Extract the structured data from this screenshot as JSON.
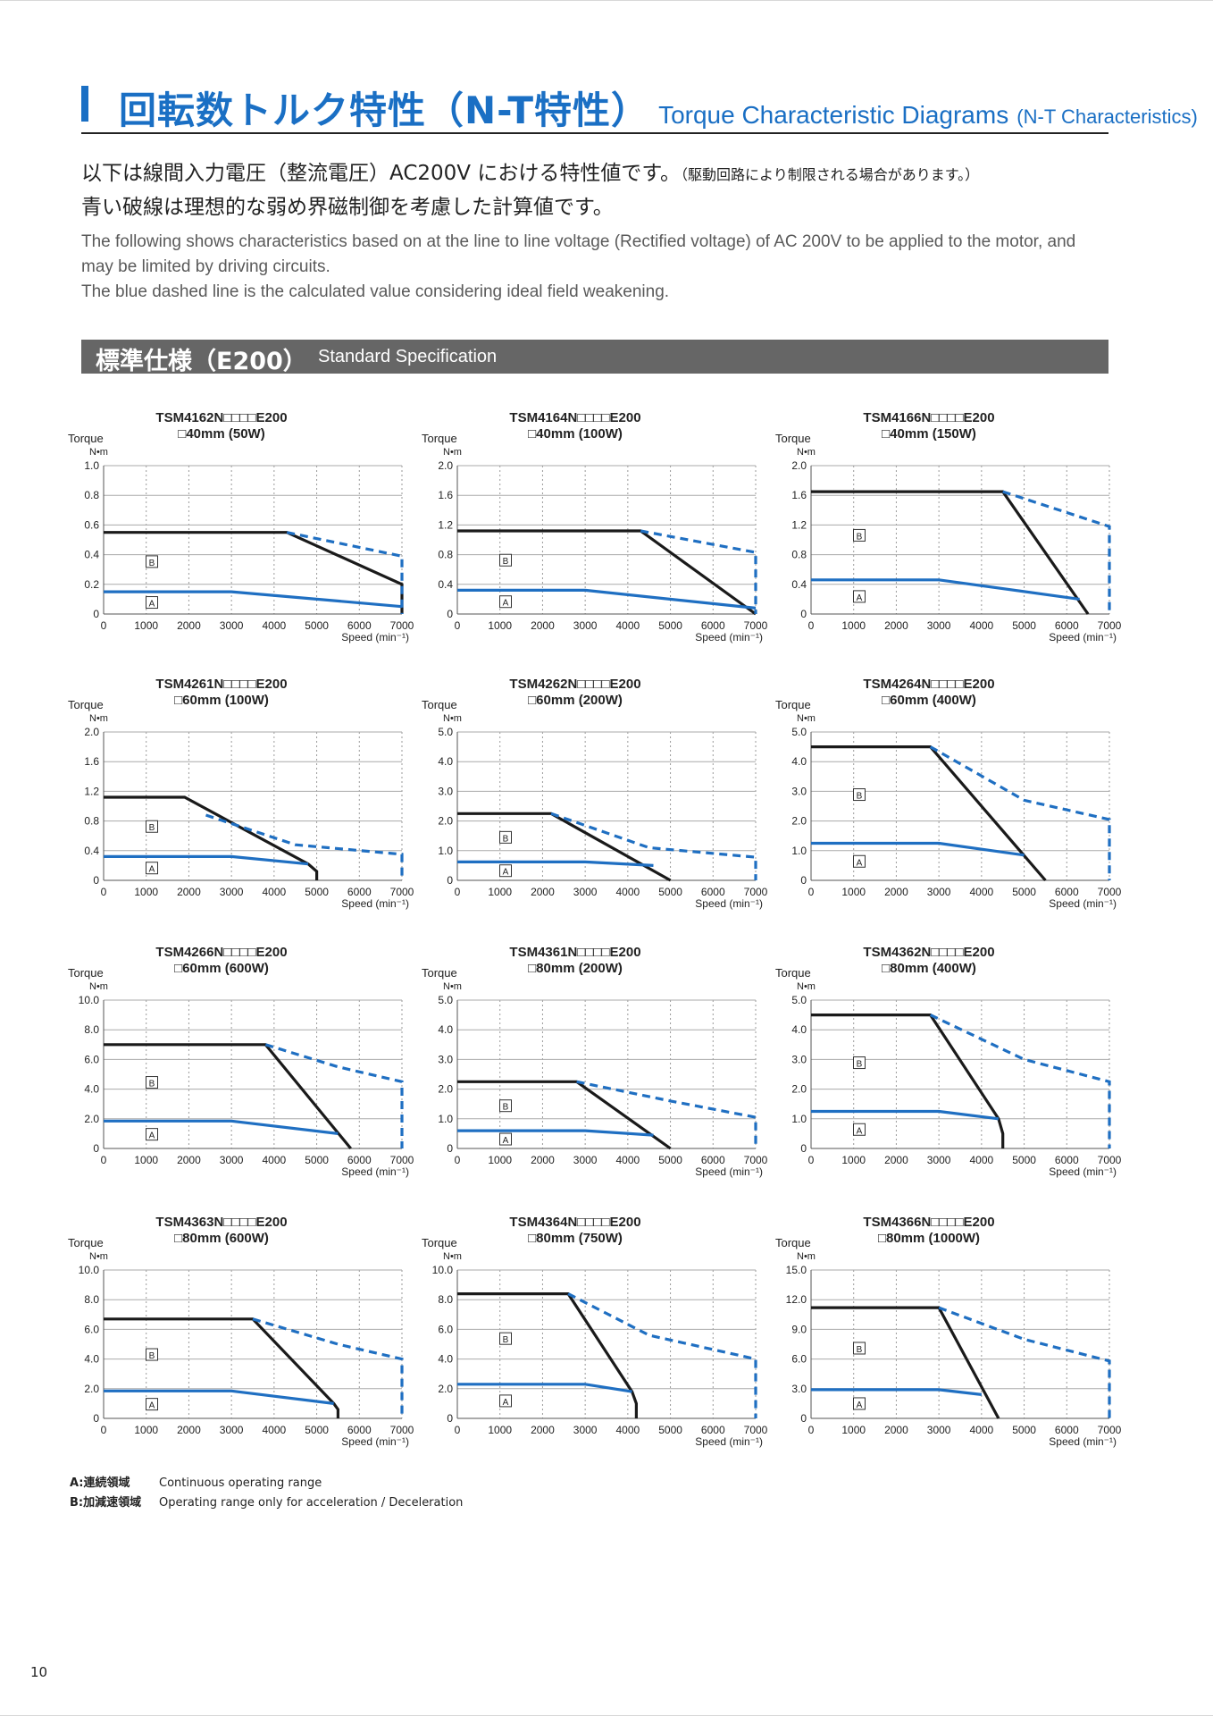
{
  "header": {
    "title_jp": "回転数トルク特性（N-T特性）",
    "title_en": "Torque Characteristic Diagrams",
    "title_en_suffix": "(N-T Characteristics)"
  },
  "intro": {
    "jp_line1": "以下は線間入力電圧（整流電圧）AC200V における特性値です。",
    "jp_line1_note": "（駆動回路により制限される場合があります。）",
    "jp_line2": "青い破線は理想的な弱め界磁制御を考慮した計算値です。",
    "en_line1": "The following shows characteristics based on at the line to line voltage (Rectified voltage) of AC 200V to be applied to the motor, and",
    "en_line2": "may be limited by driving circuits.",
    "en_line3": "The blue dashed line is the calculated value considering ideal field weakening."
  },
  "section": {
    "title_jp": "標準仕様（E200）",
    "title_en": "Standard Specification"
  },
  "axis_common": {
    "ylabel": "Torque",
    "yunit": "N•m",
    "xlabel": "Speed (min⁻¹)",
    "xticks": [
      "0",
      "1000",
      "2000",
      "3000",
      "4000",
      "5000",
      "6000",
      "7000"
    ],
    "region_a": "A",
    "region_b": "B"
  },
  "colors": {
    "accent": "#1a6fc4",
    "intermittent": "#1a1a1a",
    "continuous": "#1f6fc2",
    "section_bg": "#666666"
  },
  "chart_data": [
    {
      "type": "line",
      "title": "TSM4162N□□□□E200",
      "subtitle": "□40mm (50W)",
      "ylim": [
        0,
        1.0
      ],
      "yticks": [
        "1.0",
        "0.8",
        "0.6",
        "0.4",
        "0.2",
        "0"
      ],
      "xlim": [
        0,
        7000
      ],
      "series": [
        {
          "x": [
            0,
            4300,
            7000,
            7000
          ],
          "y": [
            0.55,
            0.55,
            0.2,
            0
          ]
        },
        {
          "x": [
            4300,
            7000,
            7000
          ],
          "y": [
            0.55,
            0.39,
            0
          ]
        },
        {
          "x": [
            0,
            3000,
            7000
          ],
          "y": [
            0.15,
            0.15,
            0.05
          ]
        }
      ]
    },
    {
      "type": "line",
      "title": "TSM4164N□□□□E200",
      "subtitle": "□40mm (100W)",
      "ylim": [
        0,
        2.0
      ],
      "yticks": [
        "2.0",
        "1.6",
        "1.2",
        "0.8",
        "0.4",
        "0"
      ],
      "xlim": [
        0,
        7000
      ],
      "series": [
        {
          "x": [
            0,
            4300,
            7000
          ],
          "y": [
            1.12,
            1.12,
            0
          ]
        },
        {
          "x": [
            4300,
            7000,
            7000
          ],
          "y": [
            1.12,
            0.83,
            0
          ]
        },
        {
          "x": [
            0,
            3000,
            7000
          ],
          "y": [
            0.32,
            0.32,
            0.08
          ]
        }
      ]
    },
    {
      "type": "line",
      "title": "TSM4166N□□□□E200",
      "subtitle": "□40mm (150W)",
      "ylim": [
        0,
        2.0
      ],
      "yticks": [
        "2.0",
        "1.6",
        "1.2",
        "0.8",
        "0.4",
        "0"
      ],
      "xlim": [
        0,
        7000
      ],
      "series": [
        {
          "x": [
            0,
            4500,
            6500
          ],
          "y": [
            1.65,
            1.65,
            0
          ]
        },
        {
          "x": [
            4500,
            7000,
            7000
          ],
          "y": [
            1.65,
            1.18,
            0
          ]
        },
        {
          "x": [
            0,
            3000,
            6300
          ],
          "y": [
            0.46,
            0.46,
            0.2
          ]
        }
      ]
    },
    {
      "type": "line",
      "title": "TSM4261N□□□□E200",
      "subtitle": "□60mm (100W)",
      "ylim": [
        0,
        2.0
      ],
      "yticks": [
        "2.0",
        "1.6",
        "1.2",
        "0.8",
        "0.4",
        "0"
      ],
      "xlim": [
        0,
        7000
      ],
      "series": [
        {
          "x": [
            0,
            1900,
            4800,
            5000,
            5000
          ],
          "y": [
            1.12,
            1.12,
            0.22,
            0.12,
            0
          ]
        },
        {
          "x": [
            2400,
            4500,
            7000,
            7000
          ],
          "y": [
            0.88,
            0.48,
            0.35,
            0
          ]
        },
        {
          "x": [
            0,
            3000,
            4800
          ],
          "y": [
            0.32,
            0.32,
            0.22
          ]
        }
      ]
    },
    {
      "type": "line",
      "title": "TSM4262N□□□□E200",
      "subtitle": "□60mm (200W)",
      "ylim": [
        0,
        5.0
      ],
      "yticks": [
        "5.0",
        "4.0",
        "3.0",
        "2.0",
        "1.0",
        "0"
      ],
      "xlim": [
        0,
        7000
      ],
      "series": [
        {
          "x": [
            0,
            2200,
            5000
          ],
          "y": [
            2.25,
            2.25,
            0
          ]
        },
        {
          "x": [
            2200,
            4500,
            7000,
            7000
          ],
          "y": [
            2.25,
            1.1,
            0.78,
            0
          ]
        },
        {
          "x": [
            0,
            3000,
            4600
          ],
          "y": [
            0.62,
            0.62,
            0.5
          ]
        }
      ]
    },
    {
      "type": "line",
      "title": "TSM4264N□□□□E200",
      "subtitle": "□60mm (400W)",
      "ylim": [
        0,
        5.0
      ],
      "yticks": [
        "5.0",
        "4.0",
        "3.0",
        "2.0",
        "1.0",
        "0"
      ],
      "xlim": [
        0,
        7000
      ],
      "series": [
        {
          "x": [
            0,
            2800,
            5500
          ],
          "y": [
            4.5,
            4.5,
            0
          ]
        },
        {
          "x": [
            2800,
            5000,
            7000,
            7000
          ],
          "y": [
            4.5,
            2.7,
            2.05,
            0
          ]
        },
        {
          "x": [
            0,
            3000,
            5000
          ],
          "y": [
            1.25,
            1.25,
            0.85
          ]
        }
      ]
    },
    {
      "type": "line",
      "title": "TSM4266N□□□□E200",
      "subtitle": "□60mm (600W)",
      "ylim": [
        0,
        10.0
      ],
      "yticks": [
        "10.0",
        "8.0",
        "6.0",
        "4.0",
        "2.0",
        "0"
      ],
      "xlim": [
        0,
        7000
      ],
      "series": [
        {
          "x": [
            0,
            3800,
            5800
          ],
          "y": [
            7.0,
            7.0,
            0
          ]
        },
        {
          "x": [
            3800,
            5500,
            7000,
            7000
          ],
          "y": [
            7.0,
            5.5,
            4.5,
            0
          ]
        },
        {
          "x": [
            0,
            3000,
            5500
          ],
          "y": [
            1.85,
            1.85,
            1.0
          ]
        }
      ]
    },
    {
      "type": "line",
      "title": "TSM4361N□□□□E200",
      "subtitle": "□80mm (200W)",
      "ylim": [
        0,
        5.0
      ],
      "yticks": [
        "5.0",
        "4.0",
        "3.0",
        "2.0",
        "1.0",
        "0"
      ],
      "xlim": [
        0,
        7000
      ],
      "series": [
        {
          "x": [
            0,
            2800,
            5000
          ],
          "y": [
            2.25,
            2.25,
            0
          ]
        },
        {
          "x": [
            2800,
            5000,
            7000,
            7000
          ],
          "y": [
            2.25,
            1.6,
            1.05,
            0
          ]
        },
        {
          "x": [
            0,
            3000,
            4600
          ],
          "y": [
            0.6,
            0.6,
            0.45
          ]
        }
      ]
    },
    {
      "type": "line",
      "title": "TSM4362N□□□□E200",
      "subtitle": "□80mm (400W)",
      "ylim": [
        0,
        5.0
      ],
      "yticks": [
        "5.0",
        "4.0",
        "3.0",
        "2.0",
        "1.0",
        "0"
      ],
      "xlim": [
        0,
        7000
      ],
      "series": [
        {
          "x": [
            0,
            2800,
            4400,
            4500,
            4500
          ],
          "y": [
            4.5,
            4.5,
            1.0,
            0.5,
            0
          ]
        },
        {
          "x": [
            2800,
            5000,
            7000,
            7000
          ],
          "y": [
            4.5,
            3.0,
            2.25,
            0
          ]
        },
        {
          "x": [
            0,
            3000,
            4400
          ],
          "y": [
            1.25,
            1.25,
            1.0
          ]
        }
      ]
    },
    {
      "type": "line",
      "title": "TSM4363N□□□□E200",
      "subtitle": "□80mm (600W)",
      "ylim": [
        0,
        10.0
      ],
      "yticks": [
        "10.0",
        "8.0",
        "6.0",
        "4.0",
        "2.0",
        "0"
      ],
      "xlim": [
        0,
        7000
      ],
      "series": [
        {
          "x": [
            0,
            3500,
            5400,
            5500,
            5500
          ],
          "y": [
            6.7,
            6.7,
            1.0,
            0.6,
            0
          ]
        },
        {
          "x": [
            3500,
            5500,
            7000,
            7000
          ],
          "y": [
            6.7,
            5.0,
            4.0,
            0
          ]
        },
        {
          "x": [
            0,
            3000,
            5400
          ],
          "y": [
            1.85,
            1.85,
            1.0
          ]
        }
      ]
    },
    {
      "type": "line",
      "title": "TSM4364N□□□□E200",
      "subtitle": "□80mm (750W)",
      "ylim": [
        0,
        10.0
      ],
      "yticks": [
        "10.0",
        "8.0",
        "6.0",
        "4.0",
        "2.0",
        "0"
      ],
      "xlim": [
        0,
        7000
      ],
      "series": [
        {
          "x": [
            0,
            2600,
            4100,
            4200,
            4200
          ],
          "y": [
            8.4,
            8.4,
            1.8,
            1.0,
            0
          ]
        },
        {
          "x": [
            2600,
            4500,
            7000,
            7000
          ],
          "y": [
            8.4,
            5.6,
            4.0,
            0
          ]
        },
        {
          "x": [
            0,
            3000,
            4100
          ],
          "y": [
            2.3,
            2.3,
            1.8
          ]
        }
      ]
    },
    {
      "type": "line",
      "title": "TSM4366N□□□□E200",
      "subtitle": "□80mm (1000W)",
      "ylim": [
        0,
        15.0
      ],
      "yticks": [
        "15.0",
        "12.0",
        "9.0",
        "6.0",
        "3.0",
        "0"
      ],
      "xlim": [
        0,
        7000
      ],
      "series": [
        {
          "x": [
            0,
            3000,
            4400
          ],
          "y": [
            11.2,
            11.2,
            0
          ]
        },
        {
          "x": [
            3000,
            5000,
            7000,
            7000
          ],
          "y": [
            11.2,
            8.0,
            5.8,
            0
          ]
        },
        {
          "x": [
            0,
            3000,
            4000
          ],
          "y": [
            2.9,
            2.9,
            2.4
          ]
        }
      ]
    }
  ],
  "legend": {
    "a_label": "A:連続領域",
    "a_text": "Continuous operating range",
    "b_label": "B:加減速領域",
    "b_text": "Operating range only for acceleration / Deceleration"
  },
  "page_number": "10"
}
